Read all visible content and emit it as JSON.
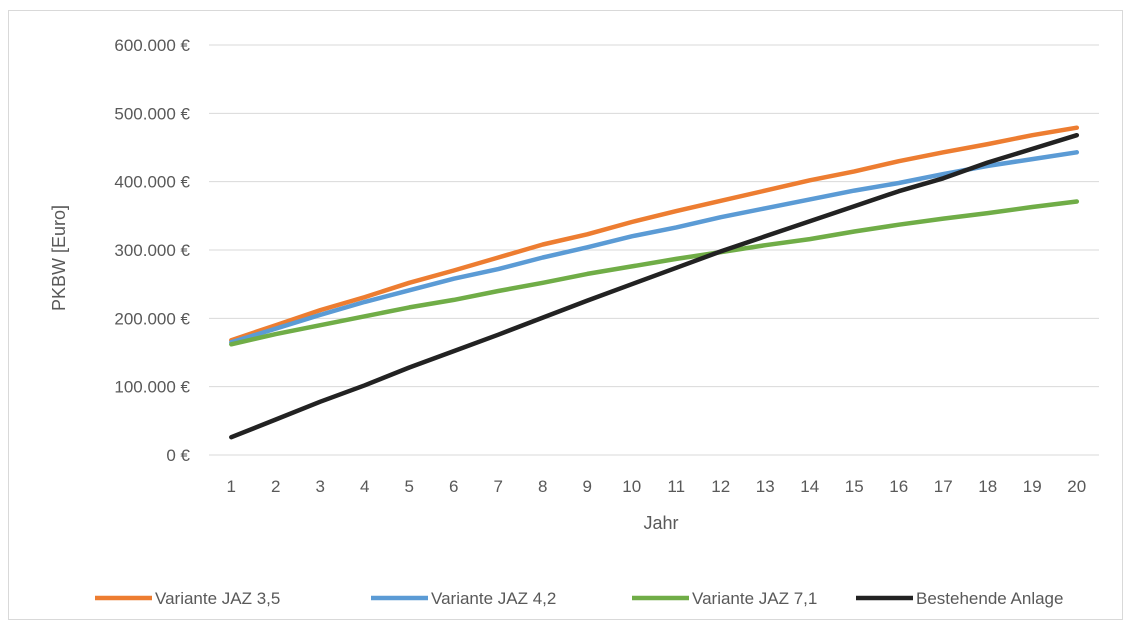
{
  "chart_data": {
    "type": "line",
    "title": "",
    "xlabel": "Jahr",
    "ylabel": "PKBW [Euro]",
    "x": [
      1,
      2,
      3,
      4,
      5,
      6,
      7,
      8,
      9,
      10,
      11,
      12,
      13,
      14,
      15,
      16,
      17,
      18,
      19,
      20
    ],
    "ylim": [
      0,
      600000
    ],
    "yticks": [
      0,
      100000,
      200000,
      300000,
      400000,
      500000,
      600000
    ],
    "ytick_labels": [
      "0 €",
      "100.000 €",
      "200.000 €",
      "300.000 €",
      "400.000 €",
      "500.000 €",
      "600.000 €"
    ],
    "grid": true,
    "legend_position": "bottom",
    "series": [
      {
        "name": "Variante JAZ 3,5",
        "color": "#ED7D31",
        "values": [
          168000,
          190000,
          212000,
          231000,
          252000,
          270000,
          289000,
          308000,
          323000,
          341000,
          357000,
          372000,
          387000,
          402000,
          415000,
          430000,
          443000,
          455000,
          468000,
          479000
        ]
      },
      {
        "name": "Variante JAZ 4,2",
        "color": "#5B9BD5",
        "values": [
          165000,
          185000,
          205000,
          224000,
          241000,
          258000,
          272000,
          289000,
          304000,
          320000,
          333000,
          348000,
          361000,
          374000,
          387000,
          398000,
          411000,
          423000,
          433000,
          443000
        ]
      },
      {
        "name": "Variante JAZ 7,1",
        "color": "#70AD47",
        "values": [
          162000,
          177000,
          190000,
          203000,
          216000,
          227000,
          240000,
          252000,
          265000,
          276000,
          287000,
          297000,
          307000,
          316000,
          327000,
          337000,
          346000,
          354000,
          363000,
          371000
        ]
      },
      {
        "name": "Bestehende Anlage",
        "color": "#222222",
        "values": [
          26000,
          52000,
          78000,
          102000,
          128000,
          152000,
          176000,
          201000,
          226000,
          250000,
          274000,
          298000,
          320000,
          342000,
          364000,
          386000,
          405000,
          428000,
          448000,
          468000
        ]
      }
    ]
  }
}
